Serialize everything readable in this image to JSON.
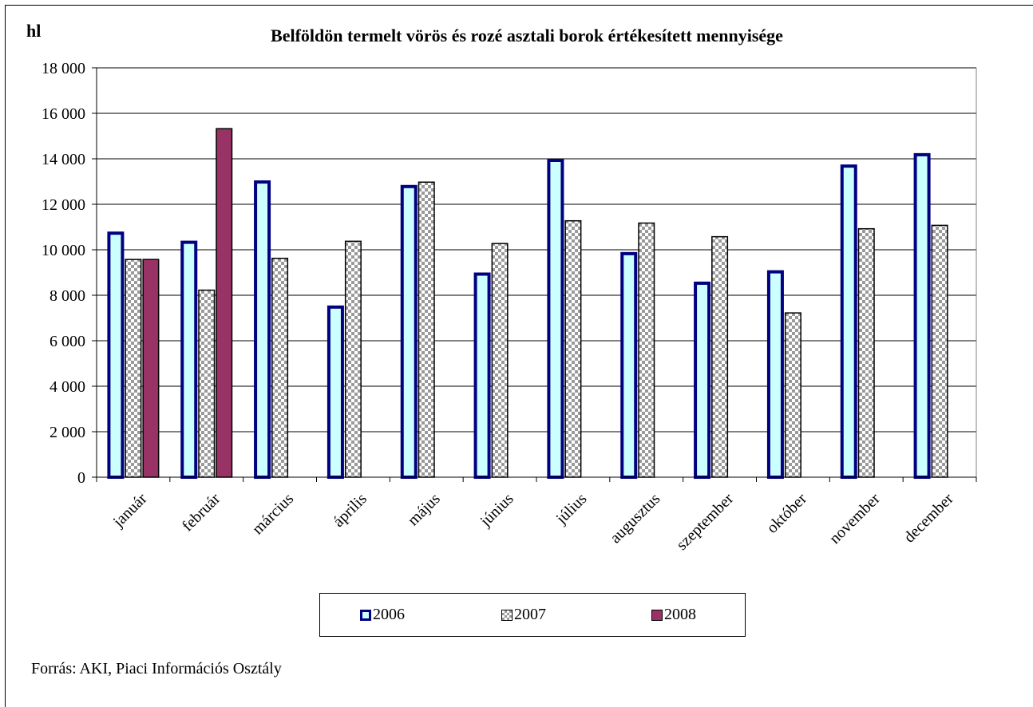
{
  "source_note": "Forrás: AKI, Piaci Információs Osztály",
  "colors": {
    "s2006_fill": "#ccffff",
    "s2006_border": "#000080",
    "s2008_fill": "#993366",
    "grid": "#000000"
  },
  "chart_data": {
    "type": "bar",
    "title": "Belföldön termelt vörös és rozé asztali borok értékesített mennyisége",
    "ylabel": "hl",
    "xlabel": "",
    "ylim": [
      0,
      18000
    ],
    "yticks": [
      "0",
      "2 000",
      "4 000",
      "6 000",
      "8 000",
      "10 000",
      "12 000",
      "14 000",
      "16 000",
      "18 000"
    ],
    "grid": true,
    "legend_position": "bottom",
    "categories": [
      "január",
      "február",
      "március",
      "április",
      "május",
      "június",
      "július",
      "augusztus",
      "szeptember",
      "október",
      "november",
      "december"
    ],
    "series": [
      {
        "name": "2006",
        "values": [
          10800,
          10400,
          13050,
          7550,
          12850,
          9000,
          14000,
          9900,
          8600,
          9100,
          13750,
          14250
        ]
      },
      {
        "name": "2007",
        "values": [
          9600,
          8250,
          9650,
          10400,
          13000,
          10300,
          11300,
          11200,
          10600,
          7250,
          10950,
          11100
        ]
      },
      {
        "name": "2008",
        "values": [
          9600,
          15350,
          null,
          null,
          null,
          null,
          null,
          null,
          null,
          null,
          null,
          null
        ]
      }
    ]
  }
}
